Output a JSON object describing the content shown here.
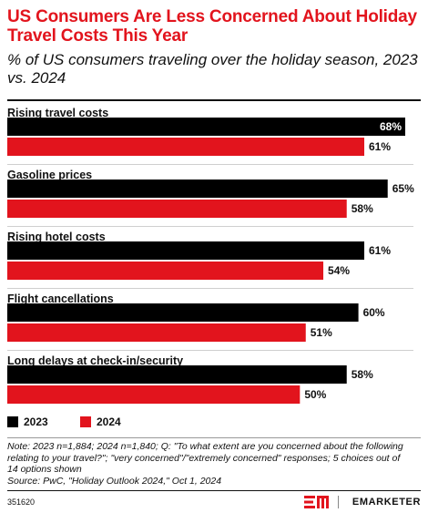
{
  "chart_data": {
    "type": "bar",
    "orientation": "horizontal",
    "title": "US Consumers Are Less Concerned About Holiday Travel Costs This Year",
    "subtitle": "% of US consumers traveling over the holiday season, 2023 vs. 2024",
    "categories": [
      "Rising travel costs",
      "Gasoline prices",
      "Rising hotel costs",
      "Flight cancellations",
      "Long delays at check-in/security"
    ],
    "series": [
      {
        "name": "2023",
        "values": [
          68,
          65,
          61,
          60,
          58
        ],
        "color": "#000000"
      },
      {
        "name": "2024",
        "values": [
          61,
          58,
          54,
          51,
          50
        ],
        "color": "#e2141d"
      }
    ],
    "value_suffix": "%",
    "xlim": [
      0,
      68
    ],
    "grid": false,
    "legend_position": "bottom-left"
  },
  "note": {
    "lines": [
      "Note: 2023 n=1,884; 2024 n=1,840; Q: \"To what extent are you concerned about the following relating to your travel?\"; \"very concerned\"/\"extremely concerned\" responses; 5 choices out of 14 options shown",
      "Source: PwC, \"Holiday Outlook 2024,\" Oct 1, 2024"
    ]
  },
  "footer": {
    "chart_id": "351620",
    "brand_name": "EMARKETER",
    "brand_color": "#e2141d"
  }
}
